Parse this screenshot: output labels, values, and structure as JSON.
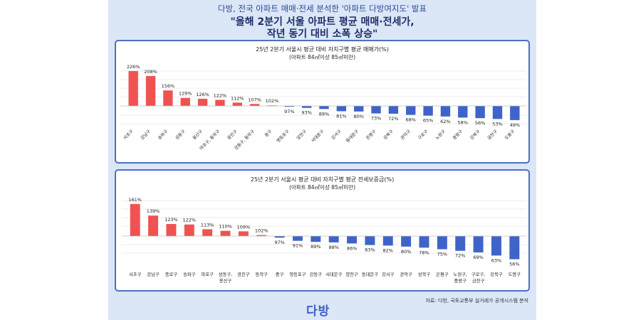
{
  "header": {
    "subtitle": "다방, 전국 아파트 매매·전세 분석한 '아파트 다방여지도' 발표",
    "title_line1": "\"올해 2분기 서울 아파트 평균 매매·전세가,",
    "title_line2": "작년 동기 대비 소폭 상승\""
  },
  "colors": {
    "positive": "#f05252",
    "negative": "#3f64c9",
    "border": "#4c6fc0",
    "panel": "#dbe6f6"
  },
  "chart_data": [
    {
      "type": "bar",
      "title": "25년 2분기 서울시 평균 대비 자치구별 평균 매매가(%)",
      "subtitle": "(아파트 84㎡이상 85㎡미만)",
      "baseline": 100,
      "categories": [
        "서초구",
        "강남구",
        "송파구",
        "성동구",
        "용산구",
        "마포구, 동작구",
        "광진구",
        "강동구, 동작구",
        "중구",
        "영등포구",
        "양천구",
        "서대문구",
        "강서구",
        "동대문구",
        "은평구",
        "성북구",
        "관악구",
        "구로구",
        "노원구",
        "중랑구",
        "강북구",
        "금천구",
        "도봉구"
      ],
      "values": [
        226,
        208,
        156,
        129,
        126,
        122,
        112,
        107,
        102,
        97,
        93,
        89,
        81,
        80,
        73,
        72,
        68,
        65,
        62,
        58,
        56,
        53,
        49
      ],
      "labels": [
        "226%",
        "208%",
        "156%",
        "129%",
        "126%",
        "122%",
        "112%",
        "107%",
        "102%",
        "97%",
        "93%",
        "89%",
        "81%",
        "80%",
        "73%",
        "72%",
        "68%",
        "65%",
        "62%",
        "58%",
        "56%",
        "53%",
        "49%"
      ]
    },
    {
      "type": "bar",
      "title": "25년 2분기 서울시 평균 대비 자치구별 평균 전세보증금(%)",
      "subtitle": "(아파트 84㎡이상 85㎡미만)",
      "baseline": 100,
      "categories": [
        "서초구",
        "강남구",
        "종로구",
        "송파구",
        "마포구",
        "성동구, 용산구",
        "광진구",
        "동작구",
        "중구",
        "영등포구",
        "강동구",
        "서대문구",
        "양천구",
        "동대문구",
        "강서구",
        "관악구",
        "성북구",
        "은평구",
        "노원구, 중랑구",
        "구로구, 금천구",
        "강북구",
        "도봉구"
      ],
      "values": [
        161,
        139,
        123,
        122,
        113,
        110,
        109,
        102,
        97,
        91,
        89,
        88,
        86,
        83,
        82,
        80,
        78,
        75,
        72,
        69,
        63,
        56
      ],
      "labels": [
        "161%",
        "139%",
        "123%",
        "122%",
        "113%",
        "110%",
        "109%",
        "102%",
        "97%",
        "91%",
        "89%",
        "88%",
        "86%",
        "83%",
        "82%",
        "80%",
        "78%",
        "75%",
        "72%",
        "69%",
        "63%",
        "56%"
      ]
    }
  ],
  "footer": {
    "source": "자료: 다방, 국토교통부 실거래가 공개시스템 분석",
    "logo": "다방"
  }
}
